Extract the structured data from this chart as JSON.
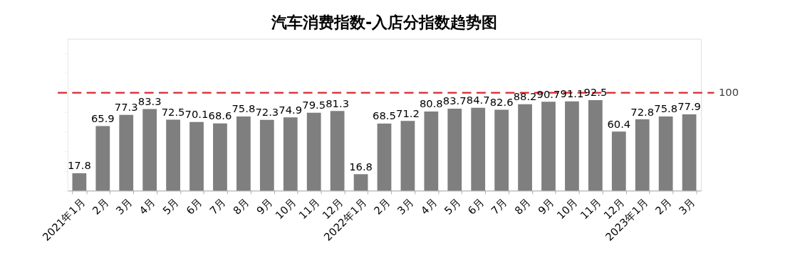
{
  "chart_data": {
    "type": "bar",
    "title": "汽车消费指数-入店分指数趋势图",
    "categories": [
      "2021年1月",
      "2月",
      "3月",
      "4月",
      "5月",
      "6月",
      "7月",
      "8月",
      "9月",
      "10月",
      "11月",
      "12月",
      "2022年1月",
      "2月",
      "3月",
      "4月",
      "5月",
      "6月",
      "7月",
      "8月",
      "9月",
      "10月",
      "11月",
      "12月",
      "2023年1月",
      "2月",
      "3月"
    ],
    "values": [
      17.8,
      65.9,
      77.3,
      83.3,
      72.5,
      70.1,
      68.6,
      75.8,
      72.3,
      74.9,
      79.5,
      81.3,
      16.8,
      68.5,
      71.2,
      80.8,
      83.7,
      84.7,
      82.6,
      88.2,
      90.7,
      91.1,
      92.5,
      60.4,
      72.8,
      75.8,
      77.9
    ],
    "color": "#7f7f7f",
    "data_labels": true,
    "ylim": [
      0,
      155
    ],
    "tick_labels": "x",
    "grid": false,
    "ref_lines": [
      {
        "axis": "y",
        "value": 100,
        "label": "100",
        "color": "#d9262e",
        "line_style": "dashed"
      }
    ]
  }
}
